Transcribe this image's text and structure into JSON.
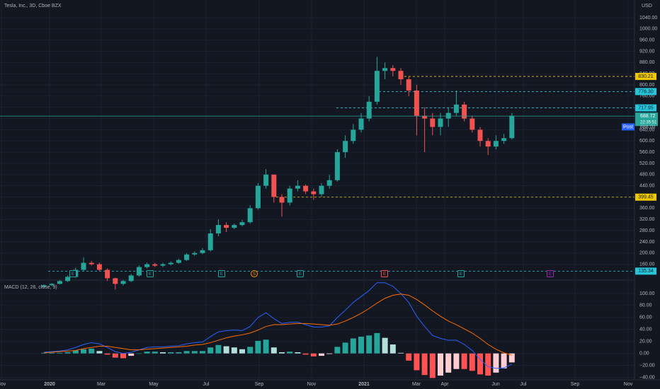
{
  "chart_data": [
    {
      "type": "candlestick",
      "title": "Tesla, Inc., 3D, Cboe BZX",
      "currency": "USD",
      "open": [
        80,
        85,
        90,
        100,
        115,
        140,
        165,
        160,
        140,
        110,
        90,
        100,
        120,
        150,
        160,
        155,
        160,
        165,
        175,
        195,
        200,
        210,
        270,
        300,
        290,
        300,
        310,
        360,
        440,
        480,
        400,
        380,
        430,
        440,
        420,
        410,
        440,
        460,
        560,
        600,
        640,
        680,
        740,
        850,
        860,
        850,
        820,
        780,
        690,
        680,
        650,
        680,
        700,
        730,
        680,
        640,
        600,
        580,
        600,
        610
      ],
      "high": [
        88,
        93,
        104,
        120,
        148,
        185,
        172,
        166,
        145,
        112,
        104,
        125,
        156,
        166,
        165,
        165,
        170,
        180,
        200,
        206,
        218,
        285,
        320,
        310,
        305,
        318,
        370,
        450,
        500,
        480,
        410,
        440,
        460,
        445,
        430,
        450,
        480,
        570,
        620,
        660,
        700,
        760,
        900,
        880,
        870,
        860,
        830,
        800,
        720,
        700,
        700,
        720,
        780,
        740,
        690,
        650,
        610,
        620,
        625,
        700
      ],
      "low": [
        76,
        82,
        88,
        97,
        112,
        136,
        155,
        135,
        100,
        70,
        85,
        96,
        116,
        145,
        150,
        150,
        156,
        162,
        172,
        190,
        196,
        205,
        260,
        275,
        285,
        295,
        305,
        355,
        430,
        380,
        330,
        370,
        420,
        410,
        390,
        400,
        430,
        455,
        540,
        590,
        630,
        670,
        730,
        820,
        830,
        800,
        760,
        620,
        560,
        620,
        620,
        650,
        690,
        670,
        630,
        580,
        550,
        570,
        590,
        605
      ],
      "close": [
        85,
        90,
        100,
        115,
        140,
        165,
        160,
        140,
        110,
        90,
        100,
        120,
        150,
        160,
        155,
        160,
        165,
        175,
        195,
        200,
        210,
        270,
        300,
        290,
        300,
        310,
        360,
        440,
        480,
        400,
        380,
        430,
        440,
        420,
        410,
        440,
        460,
        560,
        600,
        640,
        680,
        740,
        850,
        860,
        850,
        820,
        780,
        690,
        680,
        650,
        680,
        700,
        730,
        680,
        640,
        600,
        580,
        600,
        610,
        690
      ],
      "up_color": "#26a69a",
      "down_color": "#ef5350",
      "ylim": [
        106,
        1103
      ],
      "yticks": [
        {
          "value": 160,
          "label": "160.00"
        },
        {
          "value": 200,
          "label": "200.00"
        },
        {
          "value": 240,
          "label": "240.00"
        },
        {
          "value": 280,
          "label": "280.00"
        },
        {
          "value": 320,
          "label": "320.00"
        },
        {
          "value": 360,
          "label": "360.00"
        },
        {
          "value": 400,
          "label": "400.00"
        },
        {
          "value": 440,
          "label": "440.00"
        },
        {
          "value": 480,
          "label": "480.00"
        },
        {
          "value": 520,
          "label": "520.00"
        },
        {
          "value": 560,
          "label": "560.00"
        },
        {
          "value": 600,
          "label": "600.00"
        },
        {
          "value": 640,
          "label": "640.00"
        },
        {
          "value": 680,
          "label": "680.00"
        },
        {
          "value": 720,
          "label": "720.00"
        },
        {
          "value": 760,
          "label": "760.00"
        },
        {
          "value": 800,
          "label": "800.00"
        },
        {
          "value": 840,
          "label": "840.00"
        },
        {
          "value": 880,
          "label": "880.00"
        },
        {
          "value": 920,
          "label": "920.00"
        },
        {
          "value": 960,
          "label": "960.00"
        },
        {
          "value": 1000,
          "label": "1000.00"
        },
        {
          "value": 1040,
          "label": "1040.00"
        }
      ],
      "grid": true,
      "levels": [
        {
          "value": 830.21,
          "label": "830.21",
          "color": "#f0c800"
        },
        {
          "value": 776.3,
          "label": "776.30",
          "color": "#26c6da"
        },
        {
          "value": 717.95,
          "label": "717.95",
          "color": "#26c6da"
        },
        {
          "value": 399.45,
          "label": "399.45",
          "color": "#f0c800"
        },
        {
          "value": 135.34,
          "label": "135.34",
          "color": "#26c6da"
        }
      ],
      "last_price": {
        "value": 688.72,
        "label": "688.72",
        "countdown": "22:35:51",
        "color": "#26a69a"
      },
      "post_price": {
        "name": "Post",
        "value": 688,
        "label": "688.00",
        "color": "#2962ff"
      },
      "events": [
        {
          "label": "E",
          "color": "#26a69a"
        },
        {
          "label": "E",
          "color": "#26a69a"
        },
        {
          "label": "E",
          "color": "#26a69a"
        },
        {
          "label": "S",
          "color": "#ff9800"
        },
        {
          "label": "E",
          "color": "#26a69a"
        },
        {
          "label": "E",
          "color": "#ef5350"
        },
        {
          "label": "E",
          "color": "#26a69a"
        },
        {
          "label": "E",
          "color": "#9c27b0"
        }
      ],
      "x_labels": [
        "Nov",
        "2020",
        "Mar",
        "May",
        "Jul",
        "Sep",
        "Nov",
        "2021",
        "Mar",
        "Apr",
        "Jun",
        "Jul",
        "Sep",
        "Nov"
      ]
    },
    {
      "type": "macd",
      "title": "MACD (12, 26, close, 9)",
      "series": [
        {
          "name": "MACD",
          "color": "#2962ff",
          "values": [
            2,
            3,
            4,
            6,
            10,
            15,
            18,
            16,
            10,
            3,
            0,
            2,
            6,
            10,
            11,
            11,
            12,
            13,
            16,
            18,
            19,
            28,
            36,
            38,
            39,
            38,
            45,
            60,
            68,
            58,
            50,
            52,
            52,
            48,
            44,
            44,
            46,
            60,
            72,
            85,
            95,
            105,
            118,
            118,
            112,
            100,
            85,
            62,
            45,
            30,
            25,
            22,
            22,
            15,
            5,
            -10,
            -22,
            -25,
            -24,
            -18
          ]
        },
        {
          "name": "Signal",
          "color": "#ff6d00",
          "values": [
            1,
            2,
            3,
            4,
            5,
            8,
            10,
            12,
            12,
            10,
            8,
            6,
            6,
            7,
            8,
            9,
            10,
            11,
            12,
            14,
            15,
            18,
            22,
            26,
            29,
            31,
            34,
            39,
            45,
            48,
            48,
            49,
            50,
            50,
            49,
            48,
            47,
            49,
            54,
            60,
            67,
            75,
            84,
            92,
            97,
            99,
            97,
            90,
            81,
            71,
            62,
            54,
            48,
            41,
            34,
            25,
            15,
            7,
            1,
            -3
          ]
        }
      ],
      "histogram": [
        1,
        1,
        1,
        2,
        5,
        7,
        8,
        4,
        -2,
        -7,
        -8,
        -4,
        0,
        3,
        3,
        2,
        2,
        2,
        4,
        4,
        4,
        10,
        14,
        12,
        10,
        7,
        11,
        21,
        23,
        10,
        2,
        3,
        2,
        -2,
        -5,
        -4,
        -1,
        11,
        18,
        25,
        28,
        30,
        34,
        26,
        15,
        1,
        -12,
        -28,
        -36,
        -41,
        -37,
        -32,
        -26,
        -26,
        -29,
        -35,
        -37,
        -32,
        -25,
        -15
      ],
      "histogram_colors": {
        "up_rising": "#26a69a",
        "up_falling": "#b2dfdb",
        "down_falling": "#ff5252",
        "down_rising": "#ffcdd2"
      },
      "ylim": [
        -44,
        120
      ],
      "yticks": [
        {
          "value": -40,
          "label": "−40.00"
        },
        {
          "value": -20,
          "label": "−20.00"
        },
        {
          "value": 0,
          "label": "0.00"
        },
        {
          "value": 20,
          "label": "20.00"
        },
        {
          "value": 40,
          "label": "40.00"
        },
        {
          "value": 60,
          "label": "60.00"
        },
        {
          "value": 80,
          "label": "80.00"
        },
        {
          "value": 100,
          "label": "100.00"
        }
      ]
    }
  ]
}
